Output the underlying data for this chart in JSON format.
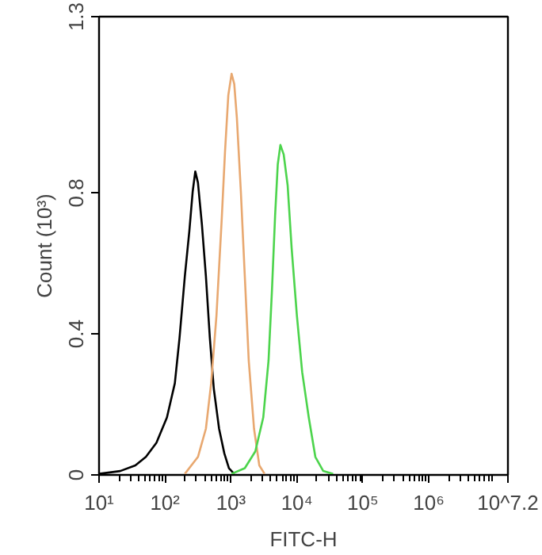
{
  "chart_data": {
    "type": "line",
    "xlabel": "FITC-H",
    "ylabel": "Count (10³)",
    "log": "x",
    "grid": false,
    "marker": "none",
    "line_style": "solid",
    "xlim": [
      10,
      15848932
    ],
    "ylim": [
      0,
      1.3
    ],
    "xticks": [
      {
        "value": 10,
        "label": "10¹"
      },
      {
        "value": 100,
        "label": "10²"
      },
      {
        "value": 1000,
        "label": "10³"
      },
      {
        "value": 10000,
        "label": "10⁴"
      },
      {
        "value": 100000,
        "label": "10⁵"
      },
      {
        "value": 1000000,
        "label": "10⁶"
      },
      {
        "value": 15848932,
        "label": "10^7.2"
      }
    ],
    "yticks": [
      0,
      0.4,
      0.8,
      1.3
    ],
    "series": [
      {
        "color": "#000000",
        "x": [
          10,
          20.9,
          35.5,
          51.3,
          74.1,
          107,
          141,
          166,
          200,
          234,
          263,
          288,
          316,
          363,
          417,
          479,
          550,
          661,
          794,
          933,
          1122
        ],
        "values": [
          0.003,
          0.011,
          0.027,
          0.051,
          0.091,
          0.163,
          0.26,
          0.388,
          0.564,
          0.692,
          0.804,
          0.861,
          0.829,
          0.71,
          0.564,
          0.388,
          0.244,
          0.131,
          0.061,
          0.019,
          0.003
        ]
      },
      {
        "color": "#e8a870",
        "x": [
          200,
          316,
          417,
          501,
          603,
          724,
          813,
          912,
          1023,
          1122,
          1230,
          1413,
          1622,
          1862,
          2239,
          2692,
          3236
        ],
        "values": [
          0.003,
          0.051,
          0.131,
          0.26,
          0.452,
          0.724,
          0.917,
          1.077,
          1.138,
          1.109,
          1.013,
          0.804,
          0.564,
          0.324,
          0.131,
          0.027,
          0.003
        ]
      },
      {
        "color": "#4cd44c",
        "x": [
          1023,
          1622,
          2344,
          3090,
          3715,
          4169,
          4677,
          5129,
          5623,
          6310,
          7244,
          8318,
          10000,
          12023,
          15136,
          19055,
          25119,
          35481
        ],
        "values": [
          0.003,
          0.019,
          0.067,
          0.163,
          0.324,
          0.516,
          0.737,
          0.881,
          0.936,
          0.909,
          0.821,
          0.644,
          0.452,
          0.292,
          0.163,
          0.051,
          0.011,
          0.003
        ]
      }
    ]
  }
}
